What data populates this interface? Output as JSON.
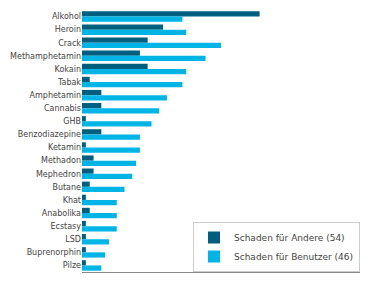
{
  "chart_data": {
    "type": "bar",
    "orientation": "horizontal",
    "categories": [
      "Alkohol",
      "Heroin",
      "Crack",
      "Methamphetamin",
      "Kokain",
      "Tabak",
      "Amphetamin",
      "Cannabis",
      "GHB",
      "Benzodiazepine",
      "Ketamin",
      "Methadon",
      "Mephedron",
      "Butane",
      "Khat",
      "Anabolika",
      "Ecstasy",
      "LSD",
      "Buprenorphin",
      "Pilze"
    ],
    "series": [
      {
        "name": "Schaden für Andere (54)",
        "color": "#005f7f",
        "values": [
          46,
          21,
          17,
          15,
          17,
          2,
          5,
          5,
          1,
          5,
          1,
          3,
          3,
          2,
          1,
          2,
          1,
          1,
          1,
          1
        ]
      },
      {
        "name": "Schaden für Benutzer (46)",
        "color": "#00b4e6",
        "values": [
          26,
          27,
          36,
          32,
          27,
          26,
          22,
          20,
          18,
          15,
          15,
          14,
          13,
          11,
          9,
          9,
          9,
          7,
          6,
          5
        ]
      }
    ],
    "xlim": [
      0,
      72
    ],
    "tick_labels": "y",
    "grid": false,
    "legend": "lower right"
  }
}
